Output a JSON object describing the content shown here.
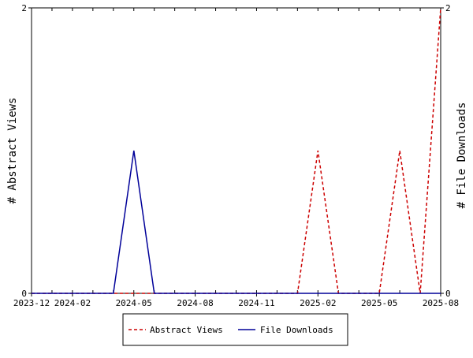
{
  "chart_data": {
    "type": "line",
    "title": "",
    "xlabel": "",
    "ylabel": "# Abstract Views",
    "y2label": "# File Downloads",
    "x": [
      "2023-12",
      "2024-01",
      "2024-02",
      "2024-03",
      "2024-04",
      "2024-05",
      "2024-06",
      "2024-07",
      "2024-08",
      "2024-09",
      "2024-10",
      "2024-11",
      "2024-12",
      "2025-01",
      "2025-02",
      "2025-03",
      "2025-04",
      "2025-05",
      "2025-06",
      "2025-07",
      "2025-08"
    ],
    "xticks": [
      "2023-12",
      "2024-02",
      "2024-05",
      "2024-08",
      "2024-11",
      "2025-02",
      "2025-05",
      "2025-08"
    ],
    "ylim": [
      0,
      2
    ],
    "yticks": [
      0,
      2
    ],
    "y2lim": [
      0,
      2
    ],
    "y2ticks": [
      0,
      2
    ],
    "grid": false,
    "legend_position": "bottom-center",
    "series": [
      {
        "name": "Abstract Views",
        "axis": "left",
        "color": "#cc0000",
        "dash": "dashed",
        "values": [
          0,
          0,
          0,
          0,
          0,
          0,
          0,
          0,
          0,
          0,
          0,
          0,
          0,
          0,
          1,
          0,
          0,
          0,
          1,
          0,
          2
        ]
      },
      {
        "name": "File Downloads",
        "axis": "right",
        "color": "#000099",
        "dash": "solid",
        "values": [
          0,
          0,
          0,
          0,
          0,
          1,
          0,
          0,
          0,
          0,
          0,
          0,
          0,
          0,
          0,
          0,
          0,
          0,
          0,
          0,
          0
        ]
      }
    ]
  }
}
